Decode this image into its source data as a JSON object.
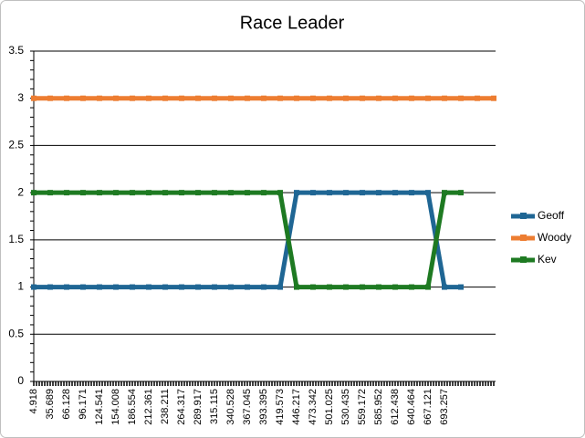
{
  "chart_data": {
    "type": "line",
    "title": "Race Leader",
    "categories": [
      "4.918",
      "35.689",
      "66.128",
      "96.171",
      "124.541",
      "154.008",
      "186.554",
      "212.361",
      "238.211",
      "264.317",
      "289.917",
      "315.115",
      "340.528",
      "367.045",
      "393.395",
      "419.573",
      "446.217",
      "473.342",
      "501.025",
      "530.435",
      "559.172",
      "585.952",
      "612.438",
      "640.464",
      "667.121",
      "693.257",
      null,
      null,
      null
    ],
    "series": [
      {
        "name": "Geoff",
        "color": "#1f6694",
        "values": [
          1,
          1,
          1,
          1,
          1,
          1,
          1,
          1,
          1,
          1,
          1,
          1,
          1,
          1,
          1,
          1,
          2,
          2,
          2,
          2,
          2,
          2,
          2,
          2,
          2,
          1,
          1,
          null,
          null
        ]
      },
      {
        "name": "Woody",
        "color": "#ed7d31",
        "values": [
          3,
          3,
          3,
          3,
          3,
          3,
          3,
          3,
          3,
          3,
          3,
          3,
          3,
          3,
          3,
          3,
          3,
          3,
          3,
          3,
          3,
          3,
          3,
          3,
          3,
          3,
          3,
          3,
          3
        ]
      },
      {
        "name": "Kev",
        "color": "#1e7a22",
        "values": [
          2,
          2,
          2,
          2,
          2,
          2,
          2,
          2,
          2,
          2,
          2,
          2,
          2,
          2,
          2,
          2,
          1,
          1,
          1,
          1,
          1,
          1,
          1,
          1,
          1,
          2,
          2,
          null,
          null
        ]
      }
    ],
    "ylim": [
      0,
      3.5
    ],
    "yticks": [
      0,
      0.5,
      1,
      1.5,
      2,
      2.5,
      3,
      3.5
    ],
    "grid": true,
    "legend": "right"
  }
}
